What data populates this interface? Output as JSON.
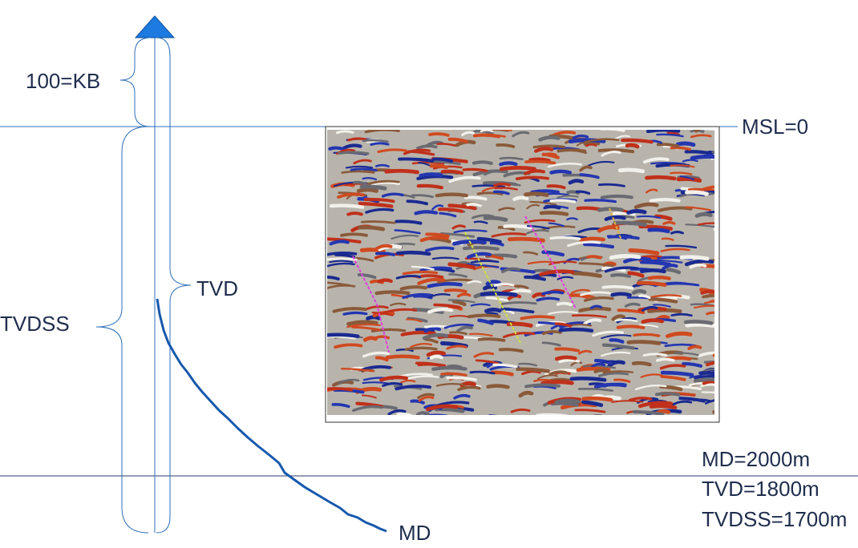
{
  "labels": {
    "kb": "100=KB",
    "msl": "MSL=0",
    "tvd": "TVD",
    "tvdss": "TVDSS",
    "md": "MD"
  },
  "depths": [
    "MD=2000m",
    "TVD=1800m",
    "TVDSS=1700m"
  ]
}
